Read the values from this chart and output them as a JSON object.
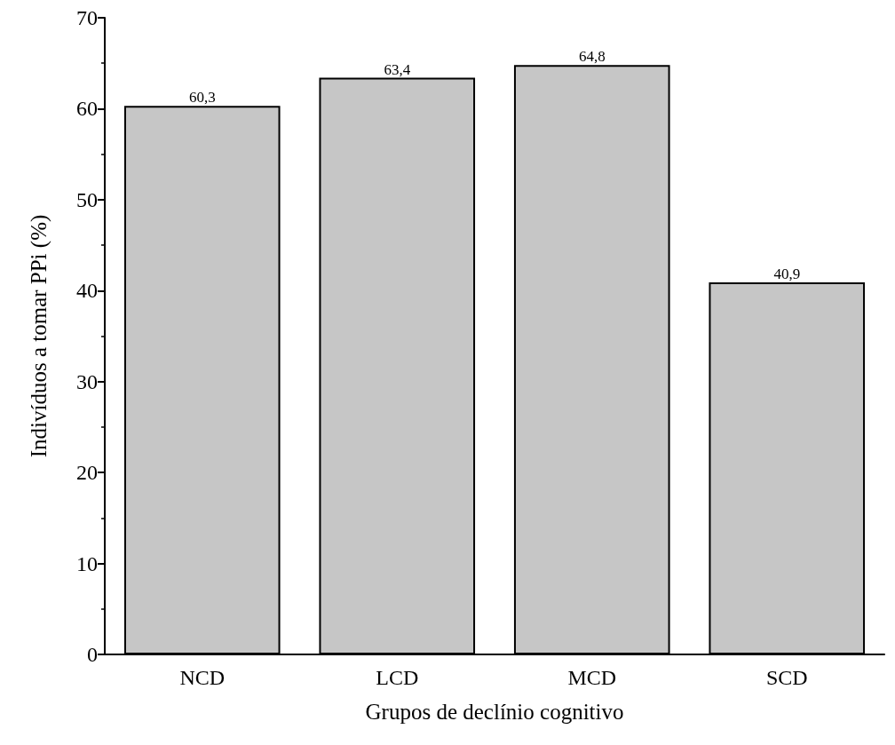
{
  "chart_data": {
    "type": "bar",
    "xlabel": "Grupos de declínio cognitivo",
    "ylabel": "Indivíduos a tomar PPi (%)",
    "categories": [
      "NCD",
      "LCD",
      "MCD",
      "SCD"
    ],
    "values": [
      60.3,
      63.4,
      64.8,
      40.9
    ],
    "value_labels": [
      "60,3",
      "63,4",
      "64,8",
      "40,9"
    ],
    "color": "#c6c6c6",
    "ylim": [
      0,
      70
    ],
    "yticks": [
      0,
      10,
      20,
      30,
      40,
      50,
      60,
      70
    ],
    "grid": false
  }
}
